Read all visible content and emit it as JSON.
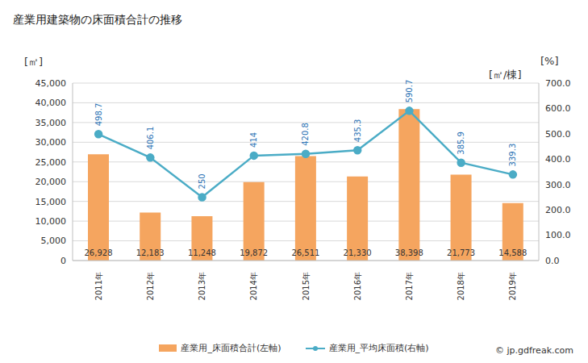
{
  "chart_data": {
    "type": "bar",
    "title": "産業用建築物の床面積合計の推移",
    "ylabel": "[㎡]",
    "y2label": "[㎡/棟]",
    "annotations": [
      "[%]",
      "© jp.gdfreak.com"
    ],
    "categories": [
      "2011年",
      "2012年",
      "2013年",
      "2014年",
      "2015年",
      "2016年",
      "2017年",
      "2018年",
      "2019年"
    ],
    "series": [
      {
        "name": "産業用_床面積合計(左軸)",
        "type": "bar",
        "axis": "y",
        "color": "#f5a55f",
        "values": [
          26928,
          12183,
          11248,
          19872,
          26511,
          21330,
          38398,
          21773,
          14588
        ],
        "value_labels": [
          "26,928",
          "12,183",
          "11,248",
          "19,872",
          "26,511",
          "21,330",
          "38,398",
          "21,773",
          "14,588"
        ]
      },
      {
        "name": "産業用_平均床面積(右軸)",
        "type": "line",
        "axis": "y2",
        "color": "#4bacc6",
        "marker": "circle",
        "values": [
          498.7,
          406.1,
          250,
          414,
          420.8,
          435.3,
          590.7,
          385.9,
          339.3
        ]
      }
    ],
    "ylim": [
      0,
      45000
    ],
    "yticks": [
      0,
      {
        "value": 5000,
        "label": "5,000"
      },
      {
        "value": 10000,
        "label": "10,000"
      },
      {
        "value": 15000,
        "label": "15,000"
      },
      {
        "value": 20000,
        "label": "20,000"
      },
      {
        "value": 25000,
        "label": "25,000"
      },
      {
        "value": 30000,
        "label": "30,000"
      },
      {
        "value": 35000,
        "label": "35,000"
      },
      {
        "value": 40000,
        "label": "40,000"
      },
      {
        "value": 45000,
        "label": "45,000"
      }
    ],
    "y2lim": [
      0,
      700
    ],
    "y2ticks": [
      {
        "value": 0,
        "label": "0.0"
      },
      {
        "value": 100,
        "label": "100.0"
      },
      {
        "value": 200,
        "label": "200.0"
      },
      {
        "value": 300,
        "label": "300.0"
      },
      {
        "value": 400,
        "label": "400.0"
      },
      {
        "value": 500,
        "label": "500.0"
      },
      {
        "value": 600,
        "label": "600.0"
      },
      {
        "value": 700,
        "label": "700.0"
      }
    ],
    "grid": true,
    "data_labels": true
  }
}
